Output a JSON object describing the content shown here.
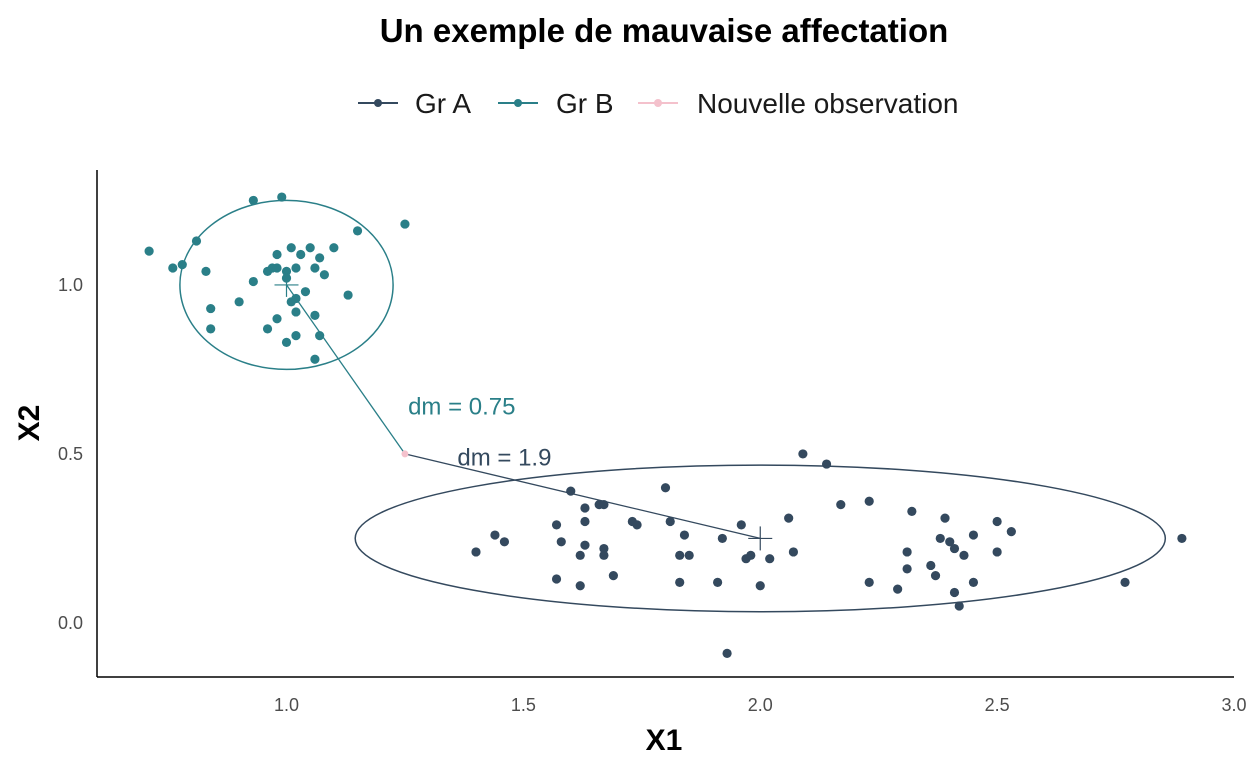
{
  "chart_data": {
    "type": "scatter",
    "title": "Un exemple de mauvaise affectation",
    "xlabel": "X1",
    "ylabel": "X2",
    "xlim": [
      0.6,
      3.0
    ],
    "ylim": [
      -0.16,
      1.34
    ],
    "x_ticks": [
      "1.0",
      "1.5",
      "2.0",
      "2.5",
      "3.0"
    ],
    "y_ticks": [
      "0.0",
      "0.5",
      "1.0"
    ],
    "grid": false,
    "legend_position": "top",
    "legend": [
      {
        "label": "Gr A",
        "color": "#34495e"
      },
      {
        "label": "Gr B",
        "color": "#2a7f88"
      },
      {
        "label": "Nouvelle observation",
        "color": "#f4c1cc"
      }
    ],
    "series": [
      {
        "name": "Gr A",
        "color": "#34495e",
        "center": [
          2.0,
          0.25
        ],
        "ellipse": {
          "rx": 0.855,
          "ry": 0.217
        },
        "points": [
          [
            1.4,
            0.21
          ],
          [
            1.44,
            0.26
          ],
          [
            1.46,
            0.24
          ],
          [
            1.57,
            0.29
          ],
          [
            1.58,
            0.24
          ],
          [
            1.57,
            0.13
          ],
          [
            1.6,
            0.39
          ],
          [
            1.62,
            0.2
          ],
          [
            1.62,
            0.11
          ],
          [
            1.63,
            0.23
          ],
          [
            1.63,
            0.3
          ],
          [
            1.63,
            0.34
          ],
          [
            1.66,
            0.35
          ],
          [
            1.67,
            0.35
          ],
          [
            1.67,
            0.22
          ],
          [
            1.67,
            0.2
          ],
          [
            1.69,
            0.14
          ],
          [
            1.73,
            0.3
          ],
          [
            1.74,
            0.29
          ],
          [
            1.8,
            0.4
          ],
          [
            1.81,
            0.3
          ],
          [
            1.83,
            0.2
          ],
          [
            1.83,
            0.12
          ],
          [
            1.84,
            0.26
          ],
          [
            1.85,
            0.2
          ],
          [
            1.91,
            0.12
          ],
          [
            1.92,
            0.25
          ],
          [
            1.93,
            -0.09
          ],
          [
            1.96,
            0.29
          ],
          [
            1.97,
            0.19
          ],
          [
            1.98,
            0.2
          ],
          [
            2.0,
            0.11
          ],
          [
            2.02,
            0.19
          ],
          [
            2.06,
            0.31
          ],
          [
            2.07,
            0.21
          ],
          [
            2.09,
            0.5
          ],
          [
            2.14,
            0.47
          ],
          [
            2.17,
            0.35
          ],
          [
            2.23,
            0.12
          ],
          [
            2.23,
            0.36
          ],
          [
            2.29,
            0.1
          ],
          [
            2.31,
            0.21
          ],
          [
            2.31,
            0.16
          ],
          [
            2.32,
            0.33
          ],
          [
            2.36,
            0.17
          ],
          [
            2.37,
            0.14
          ],
          [
            2.38,
            0.25
          ],
          [
            2.39,
            0.31
          ],
          [
            2.4,
            0.24
          ],
          [
            2.41,
            0.22
          ],
          [
            2.41,
            0.09
          ],
          [
            2.42,
            0.05
          ],
          [
            2.43,
            0.2
          ],
          [
            2.45,
            0.26
          ],
          [
            2.45,
            0.12
          ],
          [
            2.5,
            0.3
          ],
          [
            2.5,
            0.21
          ],
          [
            2.53,
            0.27
          ],
          [
            2.77,
            0.12
          ],
          [
            2.89,
            0.25
          ]
        ]
      },
      {
        "name": "Gr B",
        "color": "#2a7f88",
        "center": [
          1.0,
          1.0
        ],
        "ellipse": {
          "rx": 0.225,
          "ry": 0.25
        },
        "points": [
          [
            0.71,
            1.1
          ],
          [
            0.76,
            1.05
          ],
          [
            0.78,
            1.06
          ],
          [
            0.81,
            1.13
          ],
          [
            0.83,
            1.04
          ],
          [
            0.84,
            0.93
          ],
          [
            0.84,
            0.87
          ],
          [
            0.9,
            0.95
          ],
          [
            0.93,
            1.25
          ],
          [
            0.93,
            1.01
          ],
          [
            0.96,
            0.87
          ],
          [
            0.96,
            1.04
          ],
          [
            0.97,
            1.05
          ],
          [
            0.98,
            1.09
          ],
          [
            0.98,
            1.05
          ],
          [
            0.98,
            0.9
          ],
          [
            0.99,
            1.26
          ],
          [
            1.0,
            1.04
          ],
          [
            1.0,
            1.02
          ],
          [
            1.0,
            0.83
          ],
          [
            1.01,
            1.11
          ],
          [
            1.01,
            0.95
          ],
          [
            1.02,
            1.05
          ],
          [
            1.02,
            0.96
          ],
          [
            1.02,
            0.92
          ],
          [
            1.02,
            0.85
          ],
          [
            1.03,
            1.09
          ],
          [
            1.04,
            0.98
          ],
          [
            1.05,
            1.11
          ],
          [
            1.06,
            1.05
          ],
          [
            1.06,
            0.91
          ],
          [
            1.06,
            0.78
          ],
          [
            1.07,
            1.08
          ],
          [
            1.07,
            0.85
          ],
          [
            1.08,
            1.03
          ],
          [
            1.1,
            1.11
          ],
          [
            1.13,
            0.97
          ],
          [
            1.15,
            1.16
          ],
          [
            1.25,
            1.18
          ]
        ]
      },
      {
        "name": "Nouvelle observation",
        "color": "#f4c1cc",
        "points": [
          [
            1.25,
            0.5
          ]
        ]
      }
    ],
    "annotations": [
      {
        "text": "dm = 0.75",
        "x": 1.37,
        "y": 0.64,
        "color": "#2a7f88",
        "from": [
          1.25,
          0.5
        ],
        "to": [
          1.0,
          1.0
        ]
      },
      {
        "text": "dm = 1.9",
        "x": 1.46,
        "y": 0.49,
        "color": "#34495e",
        "from": [
          1.25,
          0.5
        ],
        "to": [
          2.0,
          0.25
        ]
      }
    ]
  }
}
